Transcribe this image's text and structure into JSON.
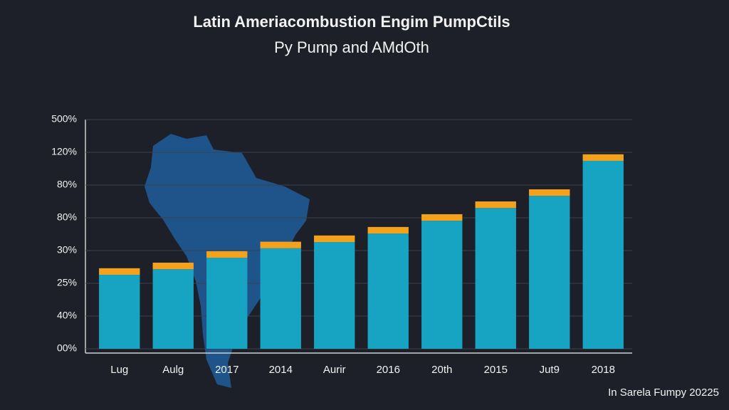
{
  "chart_data": {
    "type": "stacked_bar",
    "title": "Latin Ameriacombustion Engim PumpCtils",
    "subtitle": "Py Pump and AMdOth",
    "footnote": "In Sarela Fumpy 20225",
    "categories": [
      "Lug",
      "Aulg",
      "2017",
      "2014",
      "Aurir",
      "2016",
      "20th",
      "2015",
      "Jut9",
      "2018"
    ],
    "series": [
      {
        "color": "#17a3c2",
        "values": [
          2.26,
          2.43,
          2.78,
          3.07,
          3.26,
          3.52,
          3.91,
          4.3,
          4.67,
          5.74
        ]
      },
      {
        "color": "#f4a11c",
        "values": [
          0.2,
          0.2,
          0.2,
          0.2,
          0.2,
          0.2,
          0.2,
          0.2,
          0.2,
          0.2
        ]
      }
    ],
    "ylim": [
      0,
      7
    ],
    "yticks": [
      {
        "value": 0,
        "label": "00%"
      },
      {
        "value": 1,
        "label": "40%"
      },
      {
        "value": 2,
        "label": "25%"
      },
      {
        "value": 3,
        "label": "30%"
      },
      {
        "value": 4,
        "label": "80%"
      },
      {
        "value": 5,
        "label": "80%"
      },
      {
        "value": 6,
        "label": "120%"
      },
      {
        "value": 7,
        "label": "500%"
      }
    ],
    "grid": true
  }
}
